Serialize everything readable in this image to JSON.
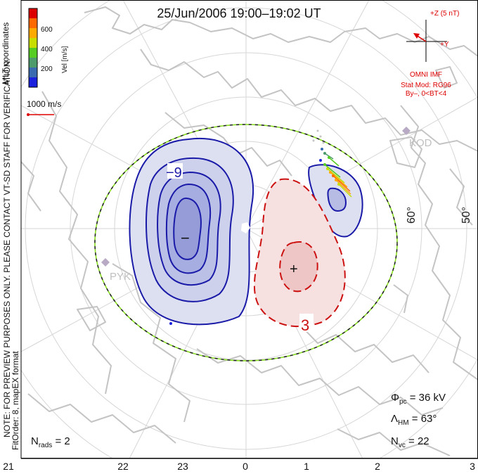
{
  "title": "25/Jun/2006 19:00–19:02 UT",
  "coords_label": "MLT coordinates",
  "colorbar": {
    "label": "Vel [m/s]",
    "ticks": [
      "600",
      "400",
      "200"
    ],
    "colors": [
      "#dd0000",
      "#ff6a00",
      "#ffaa00",
      "#c8dd00",
      "#55cc22",
      "#4d9a6a",
      "#3a6ab0",
      "#1a22dd"
    ]
  },
  "ref_vector_label": "1000 m/s",
  "imf": {
    "bz_label": "+Z (5 nT)",
    "by_label": "+Y",
    "source": "OMNI IMF",
    "stat_mod": "Stat Mod: RG96",
    "condition": "By–, 0<BT<4"
  },
  "contours": {
    "negative_label": "−9",
    "positive_label": "3",
    "min_marker": "−",
    "max_marker": "+"
  },
  "stations": [
    "KOD",
    "PYK"
  ],
  "lat_labels": [
    "60°",
    "50°"
  ],
  "note": "NOTE: FOR PREVIEW PURPOSES ONLY. PLEASE CONTACT VT-SD STAFF FOR VERIFICATION.",
  "fitorder": "FitOrder: 8, mapEX format",
  "stats": {
    "phi_pc": "36 kV",
    "lambda_hm": "63°",
    "n_vc": "22",
    "n_rads": "2"
  },
  "mlt_ticks": [
    "21",
    "22",
    "23",
    "0",
    "1",
    "2",
    "3"
  ],
  "colors": {
    "negative": "#1a1aa8",
    "positive": "#cc1111",
    "negative_fill": "#dcdff0",
    "positive_fill": "#f6dede",
    "coast": "#c4c4c4",
    "grid": "#d8d8d8",
    "boundary_green": "#88dd22",
    "annotation_red": "#dd0000"
  }
}
